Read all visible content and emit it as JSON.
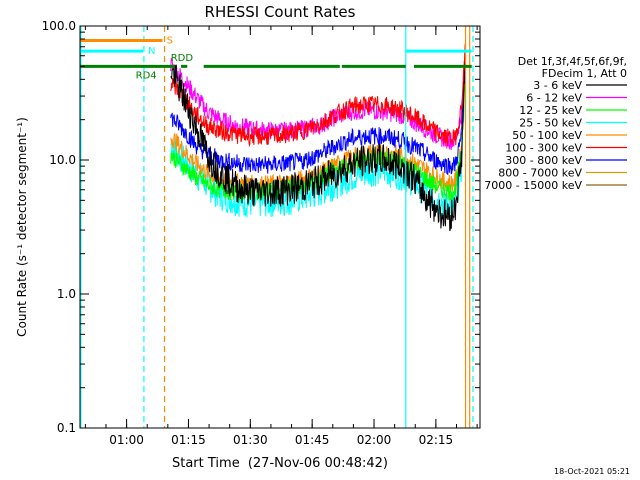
{
  "chart_data": {
    "type": "line",
    "title": "RHESSI Count Rates",
    "ylabel": "Count Rate (s⁻¹ detector segment⁻¹)",
    "xlabel_prefix": "Start Time",
    "start_time": "(27-Nov-06 00:48:42)",
    "x_unit": "minutes after 00:48:42",
    "xlim": [
      0,
      97
    ],
    "ylim": [
      0.1,
      100.0
    ],
    "y_scale": "log",
    "y_ticks": [
      0.1,
      1.0,
      10.0,
      100.0
    ],
    "y_tick_labels": [
      "0.1",
      "1.0",
      "10.0",
      "100.0"
    ],
    "x_ticks": [
      11.3,
      26.3,
      41.3,
      56.3,
      71.3,
      86.3
    ],
    "x_tick_labels": [
      "01:00",
      "01:15",
      "01:30",
      "01:45",
      "02:00",
      "02:15"
    ],
    "legend_header": [
      "Det 1f,3f,4f,5f,6f,9f,",
      "FDecim 1, Att 0"
    ],
    "legend_position": "right, outside plot",
    "series": [
      {
        "name": "3 - 6 keV",
        "color": "#000000",
        "x": [
          22,
          25,
          28,
          31,
          34,
          38,
          42,
          46,
          50,
          54,
          58,
          62,
          66,
          70,
          74,
          78,
          80,
          82,
          84,
          86,
          88,
          90,
          91,
          92.5,
          93.5
        ],
        "y": [
          48,
          30,
          18,
          11,
          8,
          6.3,
          5.8,
          5.8,
          6.0,
          6.3,
          7.0,
          8.0,
          9.4,
          10.0,
          10.0,
          9.0,
          8.0,
          6.5,
          5.2,
          4.5,
          3.9,
          3.9,
          4.5,
          10,
          65
        ]
      },
      {
        "name": "6 - 12 keV",
        "color": "#ff00ff",
        "x": [
          22,
          25,
          28,
          31,
          34,
          38,
          42,
          46,
          50,
          54,
          58,
          62,
          66,
          70,
          74,
          78,
          80,
          82,
          84,
          86,
          88,
          90,
          91,
          92.5,
          93.5
        ],
        "y": [
          52,
          40,
          30,
          23,
          20,
          18,
          17,
          16.5,
          16.5,
          17,
          18,
          21,
          23,
          23.5,
          23,
          21.5,
          20,
          18.5,
          17,
          15.5,
          14.5,
          14,
          14,
          22,
          70
        ]
      },
      {
        "name": "12 - 25 keV",
        "color": "#00ff00",
        "x": [
          22,
          25,
          28,
          31,
          34,
          38,
          42,
          46,
          50,
          54,
          58,
          62,
          66,
          70,
          74,
          78,
          80,
          82,
          84,
          86,
          88,
          90,
          91,
          92.5,
          93.5
        ],
        "y": [
          11,
          9,
          7.5,
          6.5,
          6,
          5.8,
          5.8,
          5.9,
          6.1,
          6.5,
          7.2,
          8.3,
          9.5,
          10.2,
          10.3,
          9.5,
          9.0,
          8.0,
          7.2,
          6.5,
          6.0,
          5.8,
          6.0,
          11,
          60
        ]
      },
      {
        "name": "25 - 50 keV",
        "color": "#00ffff",
        "x": [
          22,
          25,
          28,
          31,
          34,
          38,
          42,
          46,
          50,
          54,
          58,
          62,
          66,
          70,
          74,
          78,
          80,
          82,
          84,
          86,
          88,
          90,
          91,
          92.5,
          93.5
        ],
        "y": [
          13,
          10,
          8,
          6.5,
          5.5,
          5.0,
          4.8,
          4.9,
          5.0,
          5.3,
          5.8,
          6.7,
          7.6,
          8.3,
          8.4,
          7.8,
          7.2,
          6.5,
          5.8,
          5.3,
          4.9,
          4.7,
          4.9,
          9,
          55
        ]
      },
      {
        "name": "50 - 100 keV",
        "color": "#ff8c00",
        "x": [
          22,
          25,
          28,
          31,
          34,
          38,
          42,
          46,
          50,
          54,
          58,
          62,
          66,
          70,
          74,
          78,
          80,
          82,
          84,
          86,
          88,
          90,
          91,
          92.5,
          93.5
        ],
        "y": [
          15,
          12,
          9.5,
          8,
          7.2,
          6.8,
          6.6,
          6.6,
          6.8,
          7.2,
          8.0,
          9.2,
          10.5,
          11.3,
          11.5,
          10.8,
          10.0,
          9.2,
          8.4,
          7.6,
          7.0,
          6.7,
          6.9,
          12,
          60
        ]
      },
      {
        "name": "100 - 300 keV",
        "color": "#ff0000",
        "x": [
          22,
          25,
          28,
          31,
          34,
          38,
          42,
          46,
          50,
          54,
          58,
          62,
          66,
          70,
          74,
          78,
          80,
          82,
          84,
          86,
          88,
          90,
          91,
          92.5,
          93.5
        ],
        "y": [
          38,
          30,
          22,
          18,
          16.5,
          15.5,
          15,
          15,
          15.5,
          16.5,
          18.5,
          22,
          25,
          26,
          25.5,
          23.5,
          22,
          20,
          18,
          16.5,
          15,
          14.5,
          14.5,
          24,
          75
        ]
      },
      {
        "name": "300 - 800 keV",
        "color": "#0000ff",
        "x": [
          22,
          25,
          28,
          31,
          34,
          38,
          42,
          46,
          50,
          54,
          58,
          62,
          66,
          70,
          74,
          78,
          80,
          82,
          84,
          86,
          88,
          90,
          91,
          92.5,
          93.5
        ],
        "y": [
          21,
          17,
          13,
          11,
          10,
          9.5,
          9.2,
          9.2,
          9.4,
          9.8,
          11,
          12.8,
          14.5,
          15.2,
          15,
          14,
          13,
          12,
          11,
          10,
          9.4,
          9.0,
          9.2,
          15,
          65
        ]
      },
      {
        "name": "800 - 7000 keV",
        "color": "#d2a000",
        "x": [],
        "y": []
      },
      {
        "name": "7000 - 15000 keV",
        "color": "#8b6914",
        "x": [],
        "y": []
      }
    ],
    "attenuator_bars": [
      {
        "label": "S",
        "color": "#ff8c00",
        "y": 78,
        "segments": [
          [
            0,
            20
          ]
        ],
        "label_x": 21
      },
      {
        "label": "N",
        "color": "#00ffff",
        "y": 65,
        "segments": [
          [
            0,
            15.3
          ],
          [
            79,
            95
          ]
        ],
        "label_x": 16.5
      },
      {
        "label": "RD4",
        "color": "#008000",
        "y": 50,
        "segments": [
          [
            0,
            23
          ],
          [
            24.5,
            26
          ],
          [
            30,
            63
          ],
          [
            63.5,
            79
          ],
          [
            81,
            95
          ]
        ],
        "label_x": 13.5
      },
      {
        "label": "RDD",
        "color": "#008000",
        "y": 53,
        "segments": [],
        "label_x": 22
      }
    ],
    "vertical_markers": [
      {
        "x": 0.2,
        "color": "#00ffff",
        "style": "solid"
      },
      {
        "x": 15.5,
        "color": "#00ffff",
        "style": "dashed"
      },
      {
        "x": 20.5,
        "color": "#ff8c00",
        "style": "dashed"
      },
      {
        "x": 79,
        "color": "#00ffff",
        "style": "solid"
      },
      {
        "x": 93.5,
        "color": "#ff8c00",
        "style": "solid"
      },
      {
        "x": 94.5,
        "color": "#ff8c00",
        "style": "solid"
      },
      {
        "x": 95.3,
        "color": "#00ffff",
        "style": "dashed"
      }
    ],
    "footer_timestamp": "18-Oct-2021 05:21"
  }
}
